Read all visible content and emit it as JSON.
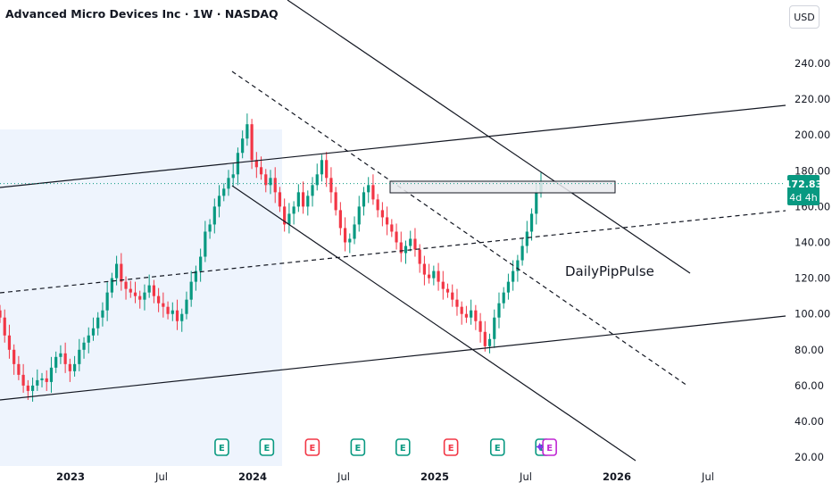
{
  "header": {
    "title": "Advanced Micro Devices Inc · 1W · NASDAQ",
    "currency_button": "USD"
  },
  "watermark": "DailyPipPulse",
  "price_label": {
    "value": "172.83",
    "countdown": "4d 4h",
    "color": "#089981"
  },
  "colors": {
    "up": "#089981",
    "down": "#f23645",
    "earnings_future": "#c026d3",
    "highlight": "#eef4fd"
  },
  "chart_data": {
    "type": "candlestick",
    "title": "Advanced Micro Devices Inc · 1W · NASDAQ",
    "y_ticks": [
      "240.00",
      "220.00",
      "200.00",
      "180.00",
      "160.00",
      "140.00",
      "120.00",
      "100.00",
      "80.00",
      "60.00",
      "40.00",
      "20.00"
    ],
    "y_tick_values": [
      240,
      220,
      200,
      180,
      160,
      140,
      120,
      100,
      80,
      60,
      40,
      20
    ],
    "x_ticks": [
      {
        "label": "2023",
        "date": "2023-01",
        "bold": true
      },
      {
        "label": "Jul",
        "date": "2023-07",
        "bold": false
      },
      {
        "label": "2024",
        "date": "2024-01",
        "bold": true
      },
      {
        "label": "Jul",
        "date": "2024-07",
        "bold": false
      },
      {
        "label": "2025",
        "date": "2025-01",
        "bold": true
      },
      {
        "label": "Jul",
        "date": "2025-07",
        "bold": false
      },
      {
        "label": "2026",
        "date": "2026-01",
        "bold": true
      },
      {
        "label": "Jul",
        "date": "2026-07",
        "bold": false
      }
    ],
    "last_price": 172.83,
    "weekly_closes": [
      98,
      88,
      80,
      72,
      66,
      60,
      57,
      60,
      63,
      64,
      62,
      70,
      76,
      78,
      72,
      68,
      72,
      80,
      84,
      88,
      92,
      98,
      102,
      112,
      120,
      128,
      118,
      114,
      112,
      110,
      108,
      112,
      116,
      110,
      106,
      104,
      100,
      102,
      96,
      100,
      108,
      118,
      124,
      132,
      146,
      150,
      160,
      166,
      170,
      176,
      178,
      190,
      198,
      206,
      186,
      182,
      178,
      172,
      176,
      168,
      160,
      150,
      156,
      160,
      168,
      160,
      166,
      172,
      178,
      186,
      176,
      168,
      158,
      148,
      140,
      142,
      150,
      160,
      168,
      172,
      164,
      158,
      154,
      150,
      146,
      140,
      134,
      138,
      142,
      136,
      128,
      122,
      120,
      124,
      118,
      114,
      112,
      108,
      104,
      100,
      98,
      102,
      96,
      90,
      82,
      86,
      98,
      106,
      112,
      118,
      124,
      130,
      138,
      146,
      156,
      168,
      173
    ],
    "earnings": [
      {
        "date": "2023-10-30",
        "label": "E",
        "type": "past-up"
      },
      {
        "date": "2024-01-29",
        "label": "E",
        "type": "past-up"
      },
      {
        "date": "2024-04-29",
        "label": "E",
        "type": "past-down"
      },
      {
        "date": "2024-07-29",
        "label": "E",
        "type": "past-up"
      },
      {
        "date": "2024-10-28",
        "label": "E",
        "type": "past-up"
      },
      {
        "date": "2025-02-03",
        "label": "E",
        "type": "past-down"
      },
      {
        "date": "2025-05-05",
        "label": "E",
        "type": "past-up"
      },
      {
        "date": "2025-08-04",
        "label": "E",
        "type": "past-up"
      },
      {
        "date": "2025-08-18",
        "label": "E",
        "type": "future"
      }
    ],
    "annotations": [
      {
        "type": "rectangle",
        "y": [
          170,
          176
        ]
      },
      {
        "type": "horizontal-dotted",
        "y": 172.83
      }
    ],
    "grid": false,
    "legend": "none"
  }
}
